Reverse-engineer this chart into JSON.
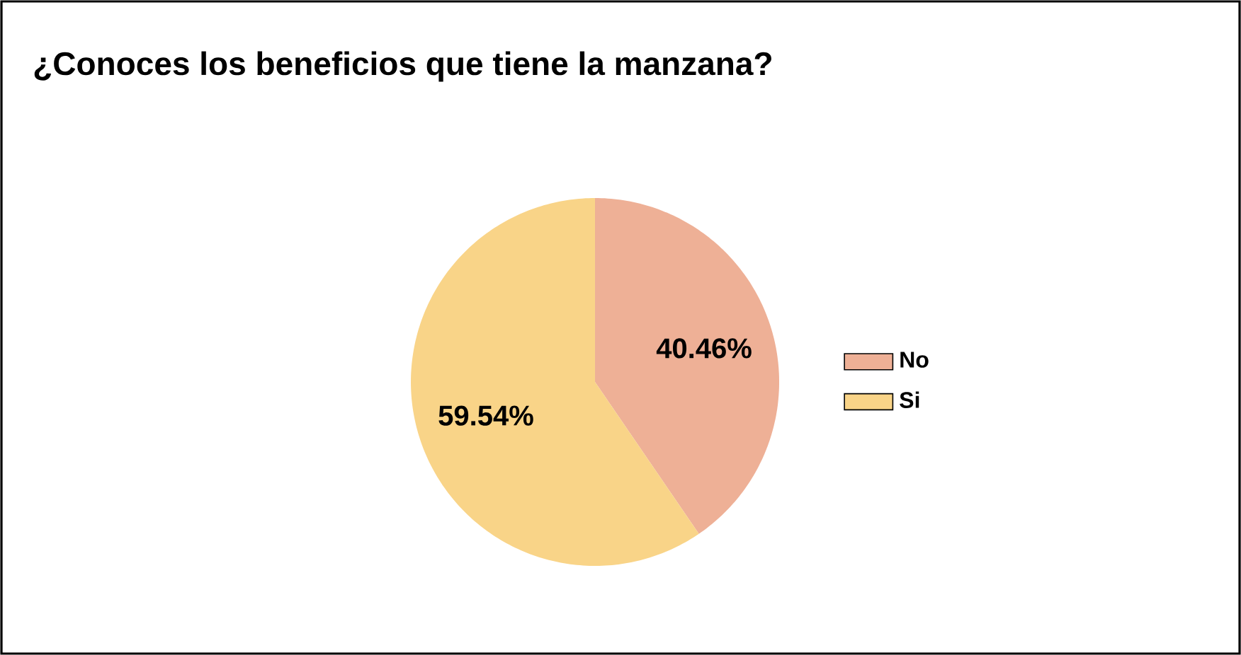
{
  "chart_data": {
    "type": "pie",
    "title": "¿Conoces los beneficios que tiene la manzana?",
    "categories": [
      "No",
      "Si"
    ],
    "values": [
      40.46,
      59.54
    ],
    "value_labels": [
      "40.46%",
      "59.54%"
    ],
    "colors": [
      "#eeb096",
      "#f9d488"
    ],
    "legend": "right"
  }
}
